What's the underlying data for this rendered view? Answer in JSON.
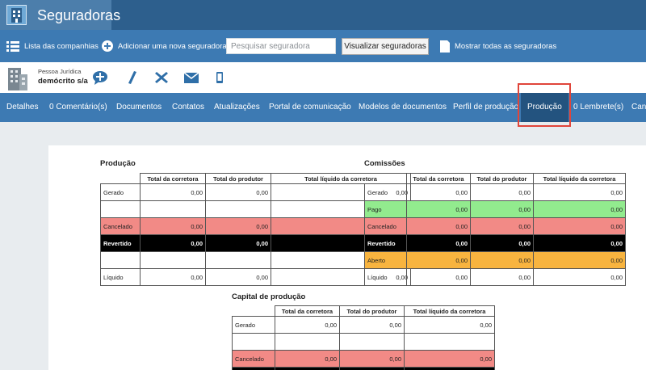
{
  "app": {
    "title": "Seguradoras",
    "logo_icon": "building-logo-icon",
    "colors": {
      "titlebar": "#2d5f8d",
      "toolbar": "#3d7ab3",
      "active_tab": "#23537f",
      "highlight": "#e0453a"
    }
  },
  "toolbar": {
    "list_label": "Lista das companhias",
    "add_label": "Adicionar uma nova seguradora",
    "search_placeholder": "Pesquisar seguradora",
    "search_value": "",
    "visualize_label": "Visualizar seguradoras",
    "show_all_label": "Mostrar todas as seguradoras"
  },
  "profile": {
    "kind": "Pessoa Jurídica",
    "name": "demócrito s/a",
    "actions": [
      "add-comment-icon",
      "edit-icon",
      "close-icon",
      "mail-icon",
      "mobile-icon"
    ]
  },
  "tabs": [
    {
      "label": "Detalhes"
    },
    {
      "label": "0 Comentário(s)"
    },
    {
      "label": "Documentos"
    },
    {
      "label": "Contatos"
    },
    {
      "label": "Atualizações"
    },
    {
      "label": "Portal de comunicação"
    },
    {
      "label": "Modelos de documentos"
    },
    {
      "label": "Perfil de produção"
    },
    {
      "label": "Produção",
      "active": true
    },
    {
      "label": "0 Lembrete(s)"
    },
    {
      "label": "Cana"
    }
  ],
  "producao": {
    "title": "Produção",
    "headers": [
      "",
      "Total da corretora",
      "Total do produtor",
      "Total líquido da corretora"
    ],
    "rows": [
      {
        "label": "Gerado",
        "v1": "0,00",
        "v2": "0,00",
        "v3": "0,00",
        "style": "plain"
      },
      {
        "label": "",
        "v1": "",
        "v2": "",
        "v3": "",
        "style": "plain"
      },
      {
        "label": "Cancelado",
        "v1": "0,00",
        "v2": "0,00",
        "v3": "0,00",
        "style": "pink"
      },
      {
        "label": "Revertido",
        "v1": "0,00",
        "v2": "0,00",
        "v3": "0,00",
        "style": "black"
      },
      {
        "label": "",
        "v1": "",
        "v2": "",
        "v3": "",
        "style": "plain"
      },
      {
        "label": "Líquido",
        "v1": "0,00",
        "v2": "0,00",
        "v3": "0,00",
        "style": "plain"
      }
    ]
  },
  "comissoes": {
    "title": "Comissões",
    "headers": [
      "",
      "Total da corretora",
      "Total do produtor",
      "Total líquido da corretora"
    ],
    "rows": [
      {
        "label": "Gerado",
        "v1": "0,00",
        "v2": "0,00",
        "v3": "0,00",
        "style": "plain"
      },
      {
        "label": "Pago",
        "v1": "0,00",
        "v2": "0,00",
        "v3": "0,00",
        "style": "green"
      },
      {
        "label": "Cancelado",
        "v1": "0,00",
        "v2": "0,00",
        "v3": "0,00",
        "style": "pink"
      },
      {
        "label": "Revertido",
        "v1": "0,00",
        "v2": "0,00",
        "v3": "0,00",
        "style": "black"
      },
      {
        "label": "Aberto",
        "v1": "0,00",
        "v2": "0,00",
        "v3": "0,00",
        "style": "orange"
      },
      {
        "label": "Líquido",
        "v1": "0,00",
        "v2": "0,00",
        "v3": "0,00",
        "style": "plain"
      }
    ]
  },
  "capital": {
    "title": "Capital de produção",
    "headers": [
      "",
      "Total da corretora",
      "Total do produtor",
      "Total líquido da corretora"
    ],
    "rows": [
      {
        "label": "Gerado",
        "v1": "0,00",
        "v2": "0,00",
        "v3": "0,00",
        "style": "plain"
      },
      {
        "label": "",
        "v1": "",
        "v2": "",
        "v3": "",
        "style": "plain"
      },
      {
        "label": "Cancelado",
        "v1": "0,00",
        "v2": "0,00",
        "v3": "0,00",
        "style": "pink"
      },
      {
        "label": "",
        "v1": "",
        "v2": "",
        "v3": "",
        "style": "black"
      }
    ]
  }
}
